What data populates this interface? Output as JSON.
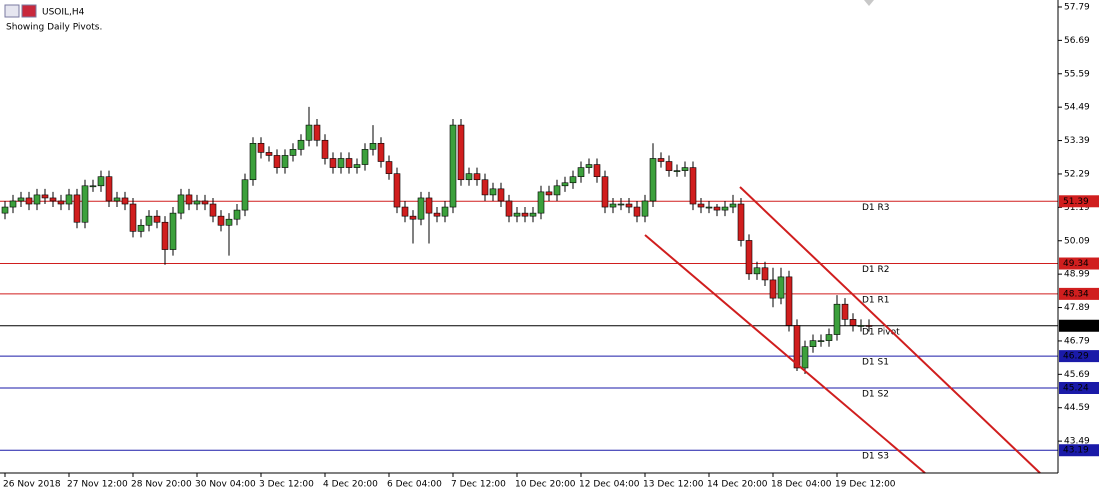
{
  "chart_data": {
    "type": "candlestick",
    "title": "USOIL,H4",
    "subtitle": "Showing Daily Pivots.",
    "categories": [
      "26 Nov 2018",
      null,
      null,
      null,
      null,
      null,
      null,
      null,
      "27 Nov 12:00",
      null,
      null,
      null,
      null,
      null,
      null,
      null,
      "28 Nov 20:00",
      null,
      null,
      null,
      null,
      null,
      null,
      null,
      "30 Nov 04:00",
      null,
      null,
      null,
      null,
      null,
      null,
      null,
      "3 Dec 12:00",
      null,
      null,
      null,
      null,
      null,
      null,
      null,
      "4 Dec 20:00",
      null,
      null,
      null,
      null,
      null,
      null,
      null,
      "6 Dec 04:00",
      null,
      null,
      null,
      null,
      null,
      null,
      null,
      "7 Dec 12:00",
      null,
      null,
      null,
      null,
      null,
      null,
      null,
      "10 Dec 20:00",
      null,
      null,
      null,
      null,
      null,
      null,
      null,
      "12 Dec 04:00",
      null,
      null,
      null,
      null,
      null,
      null,
      null,
      "13 Dec 12:00",
      null,
      null,
      null,
      null,
      null,
      null,
      null,
      "14 Dec 20:00",
      null,
      null,
      null,
      null,
      null,
      null,
      null,
      "18 Dec 04:00",
      null,
      null,
      null,
      null,
      null,
      null,
      null,
      "19 Dec 12:00",
      null,
      null,
      null,
      null
    ],
    "open": [
      51.0,
      51.2,
      51.4,
      51.5,
      51.3,
      51.6,
      51.5,
      51.4,
      51.3,
      51.6,
      50.7,
      51.9,
      51.9,
      52.2,
      51.4,
      51.5,
      51.3,
      50.4,
      50.6,
      50.9,
      50.7,
      49.8,
      51.0,
      51.6,
      51.3,
      51.4,
      51.3,
      50.9,
      50.6,
      50.8,
      51.1,
      52.1,
      53.3,
      53.0,
      52.9,
      52.5,
      52.9,
      53.1,
      53.4,
      53.9,
      53.4,
      52.8,
      52.5,
      52.8,
      52.5,
      52.6,
      53.1,
      53.3,
      52.7,
      52.3,
      51.2,
      50.9,
      50.8,
      51.5,
      51.0,
      50.9,
      51.2,
      53.9,
      52.1,
      52.3,
      52.1,
      51.6,
      51.8,
      51.4,
      50.9,
      51.0,
      50.9,
      51.0,
      51.7,
      51.6,
      51.9,
      52.0,
      52.2,
      52.5,
      52.6,
      52.2,
      51.2,
      51.3,
      51.3,
      51.2,
      50.9,
      51.4,
      52.8,
      52.7,
      52.4,
      52.4,
      52.5,
      51.3,
      51.2,
      51.2,
      51.1,
      51.2,
      51.3,
      50.1,
      49.0,
      49.2,
      48.8,
      48.2,
      48.9,
      47.3,
      45.9,
      46.6,
      46.8,
      46.8,
      47.0,
      48.0,
      47.5,
      47.3,
      47.3
    ],
    "high": [
      51.4,
      51.6,
      51.7,
      51.7,
      51.8,
      51.8,
      51.7,
      51.6,
      51.8,
      51.8,
      52.1,
      52.1,
      52.4,
      52.4,
      51.7,
      51.7,
      51.5,
      50.8,
      51.1,
      51.1,
      50.9,
      51.2,
      51.8,
      51.8,
      51.6,
      51.6,
      51.5,
      51.1,
      51.0,
      51.3,
      52.3,
      53.5,
      53.5,
      53.2,
      53.1,
      53.1,
      53.3,
      53.6,
      54.5,
      54.1,
      53.6,
      53.0,
      53.0,
      53.0,
      52.8,
      53.3,
      53.9,
      53.5,
      52.9,
      52.5,
      51.4,
      51.1,
      51.7,
      51.7,
      51.2,
      51.4,
      54.1,
      54.1,
      52.5,
      52.5,
      52.3,
      52.0,
      52.0,
      51.6,
      51.2,
      51.2,
      51.2,
      51.9,
      51.9,
      52.1,
      52.2,
      52.4,
      52.7,
      52.8,
      52.8,
      52.4,
      51.5,
      51.5,
      51.5,
      51.4,
      51.6,
      53.3,
      53.0,
      52.9,
      52.6,
      52.7,
      52.7,
      51.5,
      51.4,
      51.3,
      51.4,
      51.6,
      51.5,
      50.3,
      49.4,
      49.4,
      49.2,
      49.2,
      49.1,
      47.5,
      46.8,
      47.0,
      47.0,
      47.2,
      48.3,
      48.2,
      47.7,
      47.5,
      47.5
    ],
    "low": [
      50.8,
      51.0,
      51.2,
      51.1,
      51.1,
      51.3,
      51.2,
      51.1,
      51.1,
      50.5,
      50.5,
      51.7,
      51.7,
      51.2,
      51.2,
      51.1,
      50.2,
      50.2,
      50.4,
      50.5,
      49.3,
      49.6,
      50.8,
      51.1,
      51.1,
      51.1,
      50.7,
      50.4,
      49.6,
      50.6,
      50.9,
      51.9,
      52.8,
      52.7,
      52.3,
      52.3,
      52.7,
      52.9,
      53.2,
      53.2,
      52.6,
      52.3,
      52.3,
      52.3,
      52.3,
      52.4,
      52.9,
      52.5,
      52.1,
      51.0,
      50.7,
      50.0,
      50.6,
      50.0,
      50.7,
      50.7,
      51.0,
      51.9,
      51.9,
      51.9,
      51.4,
      51.4,
      51.2,
      50.7,
      50.7,
      50.7,
      50.7,
      50.8,
      51.4,
      51.4,
      51.7,
      51.8,
      52.0,
      52.3,
      52.0,
      51.0,
      51.0,
      51.1,
      51.0,
      50.7,
      50.7,
      51.2,
      52.5,
      52.2,
      52.2,
      52.2,
      51.1,
      51.0,
      51.0,
      50.9,
      50.9,
      51.0,
      49.9,
      48.8,
      48.8,
      48.6,
      47.9,
      48.0,
      47.1,
      45.8,
      45.7,
      46.4,
      46.6,
      46.6,
      46.8,
      47.3,
      47.1,
      47.1,
      47.1
    ],
    "close": [
      51.2,
      51.4,
      51.5,
      51.3,
      51.6,
      51.5,
      51.4,
      51.3,
      51.6,
      50.7,
      51.9,
      51.9,
      52.2,
      51.4,
      51.5,
      51.3,
      50.4,
      50.6,
      50.9,
      50.7,
      49.8,
      51.0,
      51.6,
      51.3,
      51.4,
      51.3,
      50.9,
      50.6,
      50.8,
      51.1,
      52.1,
      53.3,
      53.0,
      52.9,
      52.5,
      52.9,
      53.1,
      53.4,
      53.9,
      53.4,
      52.8,
      52.5,
      52.8,
      52.5,
      52.6,
      53.1,
      53.3,
      52.7,
      52.3,
      51.2,
      50.9,
      50.8,
      51.5,
      51.0,
      50.9,
      51.2,
      53.9,
      52.1,
      52.3,
      52.1,
      51.6,
      51.8,
      51.4,
      50.9,
      51.0,
      50.9,
      51.0,
      51.7,
      51.6,
      51.9,
      52.0,
      52.2,
      52.5,
      52.6,
      52.2,
      51.2,
      51.3,
      51.3,
      51.2,
      50.9,
      51.4,
      52.8,
      52.7,
      52.4,
      52.4,
      52.5,
      51.3,
      51.2,
      51.2,
      51.1,
      51.2,
      51.3,
      50.1,
      49.0,
      49.2,
      48.8,
      48.2,
      48.9,
      47.3,
      45.9,
      46.6,
      46.8,
      46.8,
      47.0,
      48.0,
      47.5,
      47.3,
      47.3,
      47.29
    ],
    "up_color": "#3ca03c",
    "down_color": "#d01e1e",
    "ylim": [
      42.44,
      58.02
    ],
    "yticks": [
      57.79,
      56.69,
      55.59,
      54.49,
      53.39,
      52.29,
      51.19,
      50.09,
      48.99,
      47.89,
      46.79,
      45.69,
      44.59,
      43.49
    ],
    "pivots": [
      {
        "name": "D1 R3",
        "value": 51.39,
        "color": "#d01e1e"
      },
      {
        "name": "D1 R2",
        "value": 49.34,
        "color": "#d01e1e"
      },
      {
        "name": "D1 R1",
        "value": 48.34,
        "color": "#d01e1e"
      },
      {
        "name": "D1 Pivot",
        "value": 47.29,
        "color": "#000000"
      },
      {
        "name": "D1 S1",
        "value": 46.29,
        "color": "#1a1aa8"
      },
      {
        "name": "D1 S2",
        "value": 45.24,
        "color": "#1a1aa8"
      },
      {
        "name": "D1 S3",
        "value": 43.19,
        "color": "#1a1aa8"
      }
    ]
  }
}
